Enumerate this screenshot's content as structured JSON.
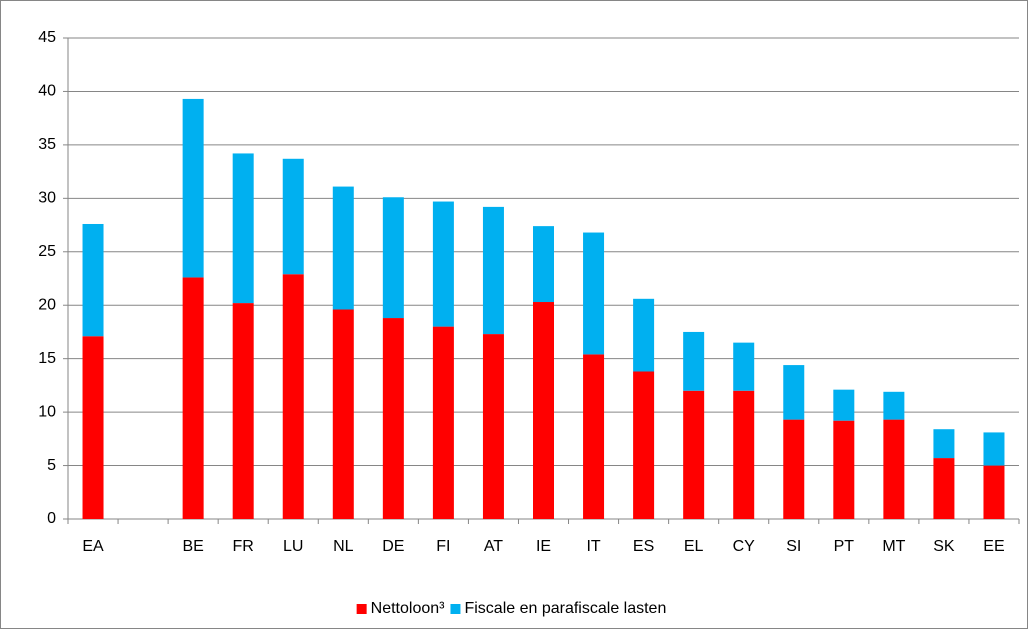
{
  "chart_data": {
    "type": "bar",
    "stacked": true,
    "categories": [
      "EA",
      null,
      "BE",
      "FR",
      "LU",
      "NL",
      "DE",
      "FI",
      "AT",
      "IE",
      "IT",
      "ES",
      "EL",
      "CY",
      "SI",
      "PT",
      "MT",
      "SK",
      "EE"
    ],
    "series": [
      {
        "name": "Nettoloon³",
        "color": "#ff0000",
        "values": [
          17.1,
          null,
          22.6,
          20.2,
          22.9,
          19.6,
          18.8,
          18.0,
          17.3,
          20.3,
          15.4,
          13.8,
          12.0,
          12.0,
          9.3,
          9.2,
          9.3,
          5.7,
          5.0
        ]
      },
      {
        "name": "Fiscale en parafiscale lasten",
        "color": "#00b0f0",
        "values": [
          10.5,
          null,
          16.7,
          14.0,
          10.8,
          11.5,
          11.3,
          11.7,
          11.9,
          7.1,
          11.4,
          6.8,
          5.5,
          4.5,
          5.1,
          2.9,
          2.6,
          2.7,
          3.1
        ]
      }
    ],
    "ylim": [
      0,
      45
    ],
    "yticks": [
      0,
      5,
      10,
      15,
      20,
      25,
      30,
      35,
      40,
      45
    ],
    "grid": true,
    "legend": "bottom"
  }
}
